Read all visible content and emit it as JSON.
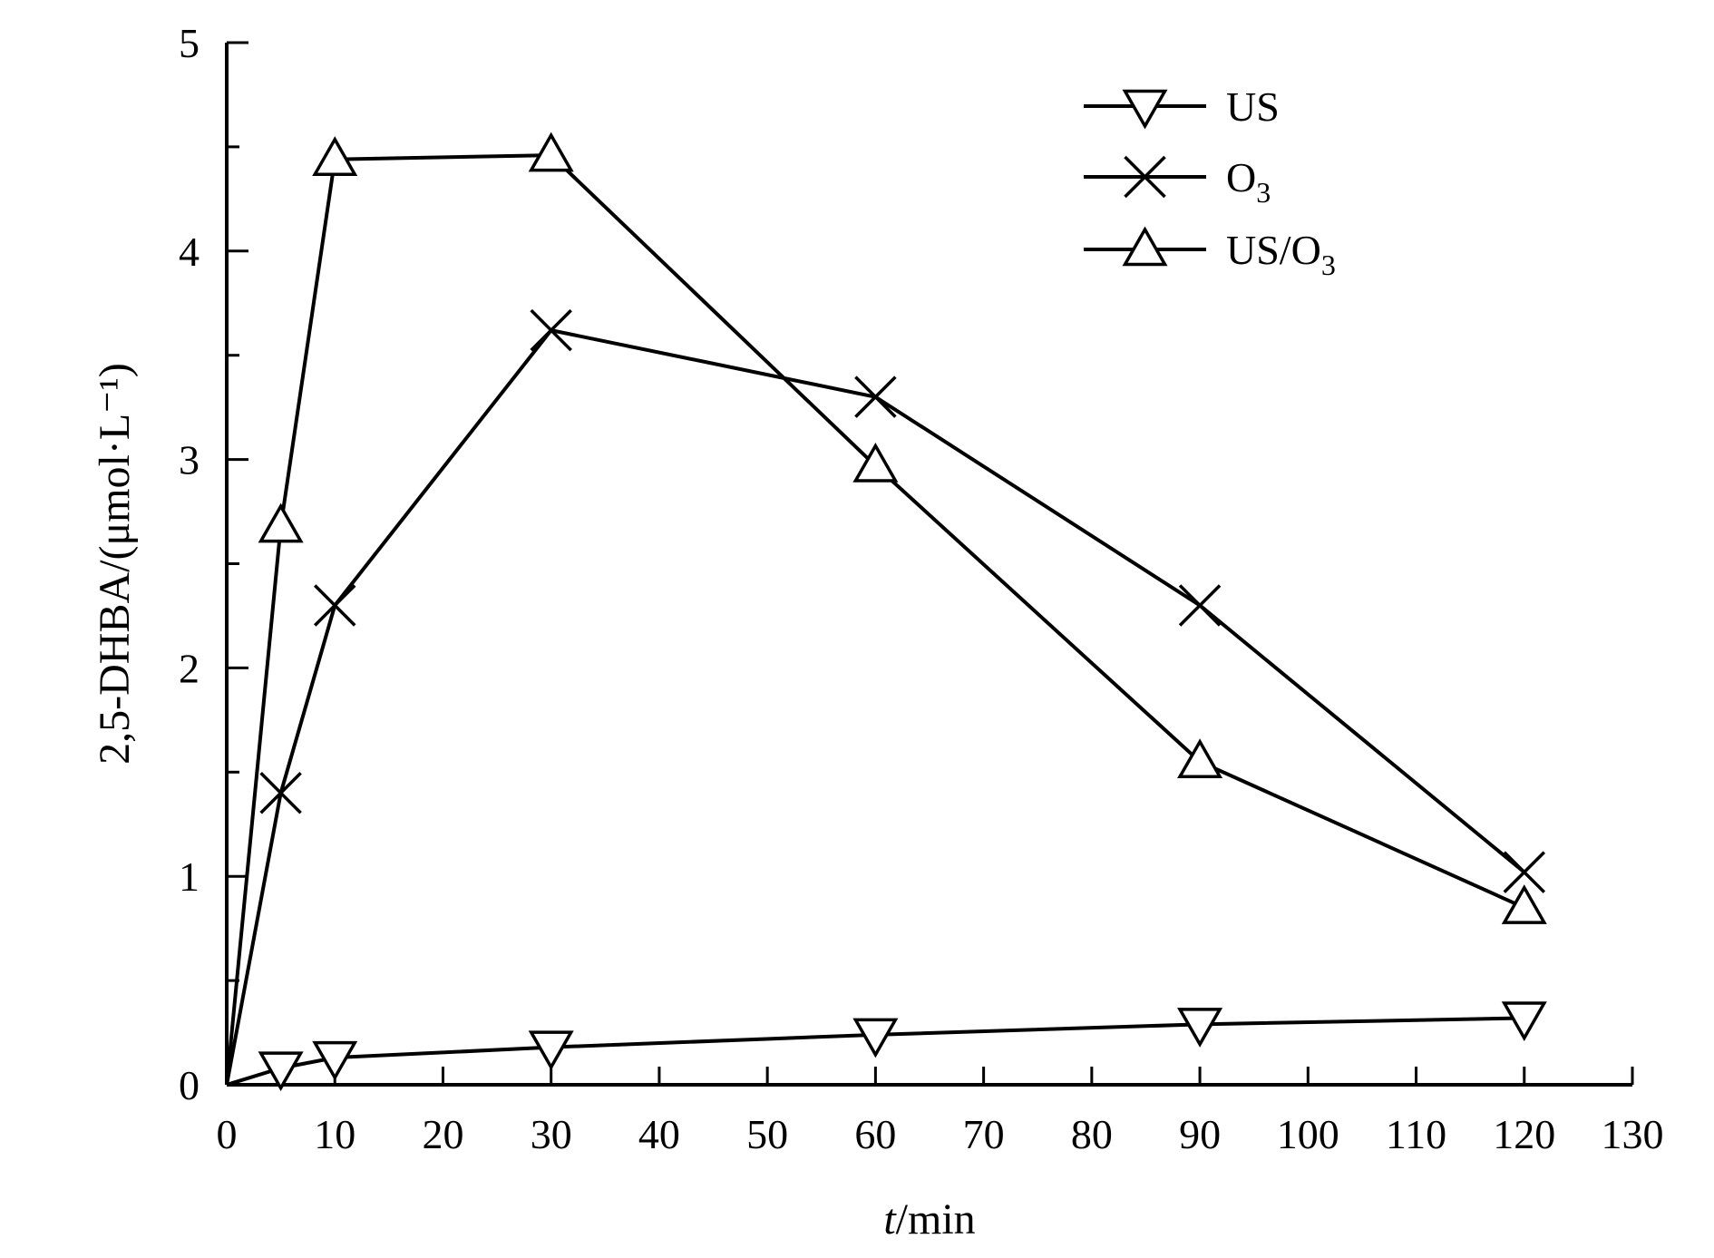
{
  "chart_data": {
    "type": "line",
    "xlabel": {
      "italic": "t",
      "rest": "/min"
    },
    "ylabel": "2,5-DHBA/(μmol·L⁻¹)",
    "xlim": [
      0,
      130
    ],
    "ylim": [
      0,
      5
    ],
    "xticks": [
      0,
      10,
      20,
      30,
      40,
      50,
      60,
      70,
      80,
      90,
      100,
      110,
      120,
      130
    ],
    "yticks": [
      0,
      1,
      2,
      3,
      4,
      5
    ],
    "grid": false,
    "legend_position": "top-right",
    "series": [
      {
        "name": "US",
        "name_main": "US",
        "name_sub": "",
        "marker": "triangle-down",
        "x": [
          0,
          5,
          10,
          30,
          60,
          90,
          120
        ],
        "y": [
          0.0,
          0.08,
          0.13,
          0.18,
          0.24,
          0.29,
          0.32
        ]
      },
      {
        "name": "O3",
        "name_main": "O",
        "name_sub": "3",
        "marker": "x",
        "x": [
          0,
          5,
          10,
          30,
          60,
          90,
          120
        ],
        "y": [
          0.0,
          1.4,
          2.3,
          3.62,
          3.3,
          2.3,
          1.02
        ]
      },
      {
        "name": "US/O3",
        "name_main": "US/O",
        "name_sub": "3",
        "marker": "triangle-up",
        "x": [
          0,
          5,
          10,
          30,
          60,
          90,
          120
        ],
        "y": [
          0.0,
          2.68,
          4.44,
          4.46,
          2.97,
          1.55,
          0.85
        ]
      }
    ]
  }
}
